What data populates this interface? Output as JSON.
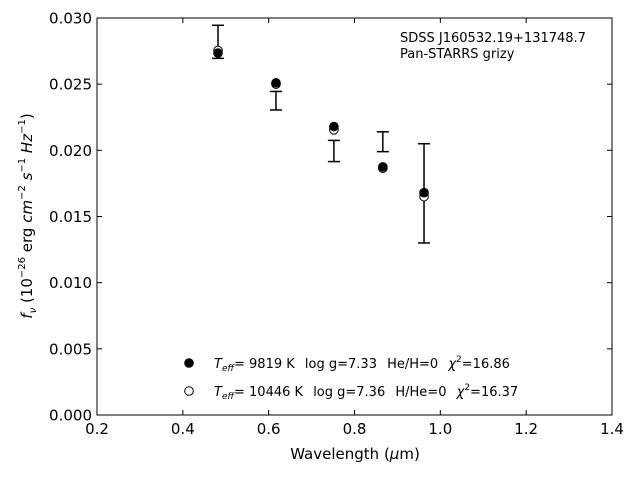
{
  "chart_data": {
    "type": "scatter",
    "annotation": {
      "line1": "SDSS J160532.19+131748.7",
      "line2": "Pan-STARRS grizy"
    },
    "xlabel": {
      "main": "Wavelength (",
      "mu": "μ",
      "unit": "m)"
    },
    "ylabel": {
      "f": "f",
      "nu": "ν",
      "p1": " (10",
      "e1": "−26",
      "p2": " erg ",
      "cm": "cm",
      "e2": "−2",
      "s": " s",
      "e3": "−1",
      "hz": " Hz",
      "e4": "−1",
      "p3": ")"
    },
    "xlim": [
      0.2,
      1.4
    ],
    "ylim": [
      0.0,
      0.03
    ],
    "xticks": [
      "0.2",
      "0.4",
      "0.6",
      "0.8",
      "1.0",
      "1.2",
      "1.4"
    ],
    "yticks": [
      "0.000",
      "0.005",
      "0.010",
      "0.015",
      "0.020",
      "0.025",
      "0.030"
    ],
    "observed": {
      "x": [
        0.482,
        0.617,
        0.752,
        0.866,
        0.962
      ],
      "y": [
        0.0282,
        0.02375,
        0.01995,
        0.02065,
        0.01675
      ],
      "yerr": [
        0.00125,
        0.0007,
        0.0008,
        0.00075,
        0.00375
      ]
    },
    "series": [
      {
        "marker": "filled",
        "x": [
          0.482,
          0.617,
          0.752,
          0.866,
          0.962
        ],
        "y": [
          0.02735,
          0.0251,
          0.0218,
          0.01875,
          0.0168
        ],
        "legend": {
          "teff_value": "=  9819 K",
          "logg": "log g=7.33",
          "comp": "He/H=0",
          "chi_value": "=16.86"
        }
      },
      {
        "marker": "open",
        "x": [
          0.482,
          0.617,
          0.752,
          0.866,
          0.962
        ],
        "y": [
          0.02755,
          0.025,
          0.02155,
          0.01865,
          0.0165
        ],
        "legend": {
          "teff_value": "= 10446 K",
          "logg": "log g=7.36",
          "comp": "H/He=0",
          "chi_value": "=16.37"
        }
      }
    ],
    "legend_placement": "bottom-center",
    "grid": false
  }
}
